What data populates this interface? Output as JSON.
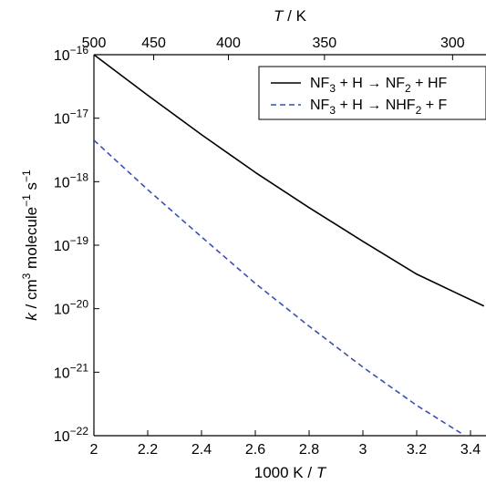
{
  "chart_data": {
    "type": "line",
    "scale": {
      "y": "log"
    },
    "x_axis": {
      "label_prefix": "1000 K / ",
      "label_var": "T",
      "range": [
        2,
        3.45
      ],
      "ticks": [
        2,
        2.2,
        2.4,
        2.6,
        2.8,
        3,
        3.2,
        3.4
      ],
      "tick_labels": [
        "2",
        "2.2",
        "2.4",
        "2.6",
        "2.8",
        "3",
        "3.2",
        "3.4"
      ]
    },
    "top_axis": {
      "label_var": "T",
      "label_suffix": " / K",
      "ticks": [
        500,
        450,
        400,
        350,
        300
      ],
      "tick_labels": [
        "500",
        "450",
        "400",
        "350",
        "300"
      ]
    },
    "y_axis": {
      "label": "k / cm3 molecule−1 s−1",
      "range": [
        1e-22,
        1e-16
      ],
      "ticks": [
        1e-22,
        1e-21,
        1e-20,
        1e-19,
        1e-18,
        1e-17,
        1e-16
      ],
      "tick_labels": [
        "10−22",
        "10−21",
        "10−20",
        "10−19",
        "10−18",
        "10−17",
        "10−16"
      ]
    },
    "legend": {
      "position": "top-right"
    },
    "series": [
      {
        "name": "NF3 + H → NF2 + HF",
        "style": "solid",
        "color": "#000000",
        "x": [
          2.0,
          2.2,
          2.4,
          2.6,
          2.8,
          3.0,
          3.2,
          3.45
        ],
        "y": [
          1e-16,
          2.3e-17,
          5.5e-18,
          1.4e-18,
          3.9e-19,
          1.15e-19,
          3.5e-20,
          1.1e-20
        ]
      },
      {
        "name": "NF3 + H → NHF2 + F",
        "style": "dashed",
        "color": "#3a4fb5",
        "x": [
          2.0,
          2.2,
          2.4,
          2.6,
          2.8,
          3.0,
          3.2,
          3.45
        ],
        "y": [
          4.5e-18,
          7.5e-19,
          1.35e-19,
          2.5e-20,
          5.3e-21,
          1.2e-21,
          3e-22,
          6.5e-23
        ]
      }
    ]
  }
}
